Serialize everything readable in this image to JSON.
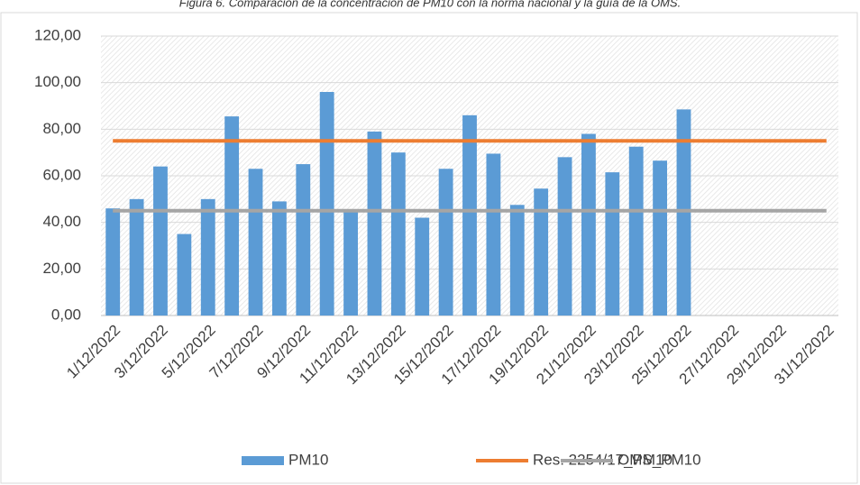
{
  "chart_data": {
    "type": "bar",
    "title": "Figura 6. Comparación de la concentración de PM10 con la  norma nacional y la guía de la OMS.",
    "categories": [
      "1/12/2022",
      null,
      "3/12/2022",
      null,
      "5/12/2022",
      null,
      "7/12/2022",
      null,
      "9/12/2022",
      null,
      "11/12/2022",
      null,
      "13/12/2022",
      null,
      "15/12/2022",
      null,
      "17/12/2022",
      null,
      "19/12/2022",
      null,
      "21/12/2022",
      null,
      "23/12/2022",
      null,
      "25/12/2022",
      null,
      "27/12/2022",
      null,
      "29/12/2022",
      null,
      "31/12/2022"
    ],
    "series": [
      {
        "name": "PM10",
        "type": "bar",
        "color": "#5b9bd5",
        "values": [
          46,
          50,
          64,
          35,
          50,
          85.5,
          63,
          49,
          65,
          96,
          45,
          79,
          70,
          42,
          63,
          86,
          69.5,
          47.5,
          54.5,
          68,
          78,
          61.5,
          72.5,
          66.5,
          88.5,
          null,
          null,
          null,
          null,
          null,
          null
        ]
      },
      {
        "name": "Res. 2254/17_PM10",
        "type": "line",
        "color": "#ed7d31",
        "values": [
          75,
          75,
          75,
          75,
          75,
          75,
          75,
          75,
          75,
          75,
          75,
          75,
          75,
          75,
          75,
          75,
          75,
          75,
          75,
          75,
          75,
          75,
          75,
          75,
          75,
          75,
          75,
          75,
          75,
          75,
          75
        ]
      },
      {
        "name": "OMS_PM10",
        "type": "line",
        "color": "#a5a5a5",
        "values": [
          45,
          45,
          45,
          45,
          45,
          45,
          45,
          45,
          45,
          45,
          45,
          45,
          45,
          45,
          45,
          45,
          45,
          45,
          45,
          45,
          45,
          45,
          45,
          45,
          45,
          45,
          45,
          45,
          45,
          45,
          45
        ]
      }
    ],
    "ylim": [
      0,
      120
    ],
    "yticks": [
      {
        "value": 0,
        "label": "0,00"
      },
      {
        "value": 20,
        "label": "20,00"
      },
      {
        "value": 40,
        "label": "40,00"
      },
      {
        "value": 60,
        "label": "60,00"
      },
      {
        "value": 80,
        "label": "80,00"
      },
      {
        "value": 100,
        "label": "100,00"
      },
      {
        "value": 120,
        "label": "120,00"
      }
    ],
    "grid": true,
    "legend": "bottom"
  }
}
